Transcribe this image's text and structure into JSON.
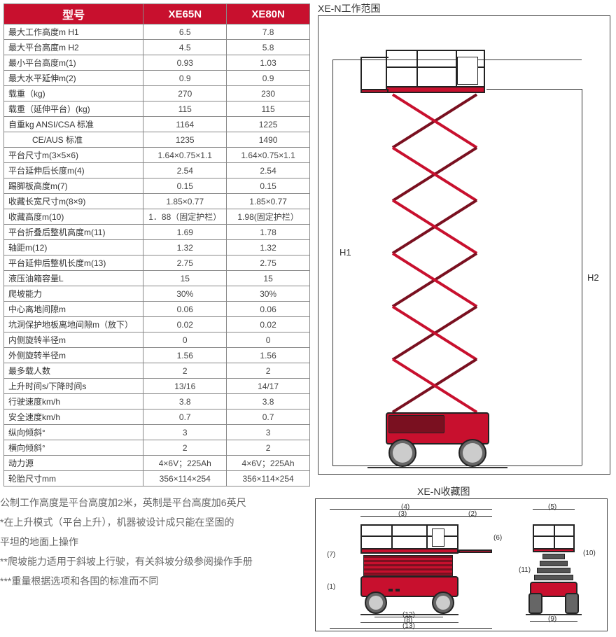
{
  "header": {
    "col0": "型号",
    "col1": "XE65N",
    "col2": "XE80N"
  },
  "rows": [
    {
      "label": "最大工作高度m H1",
      "v1": "6.5",
      "v2": "7.8"
    },
    {
      "label": "最大平台高度m H2",
      "v1": "4.5",
      "v2": "5.8"
    },
    {
      "label": "最小平台高度m(1)",
      "v1": "0.93",
      "v2": "1.03"
    },
    {
      "label": "最大水平延伸m(2)",
      "v1": "0.9",
      "v2": "0.9"
    },
    {
      "label": "载重（kg)",
      "v1": "270",
      "v2": "230"
    },
    {
      "label": "载重（延伸平台）(kg)",
      "v1": "115",
      "v2": "115"
    },
    {
      "label": "自重kg ANSI/CSA 标准",
      "v1": "1164",
      "v2": "1225"
    },
    {
      "label": "CE/AUS 标准",
      "indent": true,
      "v1": "1235",
      "v2": "1490"
    },
    {
      "label": "平台尺寸m(3×5×6)",
      "v1": "1.64×0.75×1.1",
      "v2": "1.64×0.75×1.1"
    },
    {
      "label": "平台延伸后长度m(4)",
      "v1": "2.54",
      "v2": "2.54"
    },
    {
      "label": "踢脚板高度m(7)",
      "v1": "0.15",
      "v2": "0.15"
    },
    {
      "label": "收藏长宽尺寸m(8×9)",
      "v1": "1.85×0.77",
      "v2": "1.85×0.77"
    },
    {
      "label": "收藏高度m(10)",
      "v1": "1．88（固定护栏）",
      "v2": "1.98(固定护栏）"
    },
    {
      "label": "平台折叠后整机高度m(11)",
      "v1": "1.69",
      "v2": "1.78"
    },
    {
      "label": "轴距m(12)",
      "v1": "1.32",
      "v2": "1.32"
    },
    {
      "label": "平台延伸后整机长度m(13)",
      "v1": "2.75",
      "v2": "2.75"
    },
    {
      "label": "液压油箱容量L",
      "v1": "15",
      "v2": "15"
    },
    {
      "label": "爬坡能力",
      "v1": "30%",
      "v2": "30%"
    },
    {
      "label": "中心离地间隙m",
      "v1": "0.06",
      "v2": "0.06"
    },
    {
      "label": "坑洞保护地板离地间隙m（放下）",
      "v1": "0.02",
      "v2": "0.02"
    },
    {
      "label": "内侧旋转半径m",
      "v1": "0",
      "v2": "0"
    },
    {
      "label": "外侧旋转半径m",
      "v1": "1.56",
      "v2": "1.56"
    },
    {
      "label": "最多载人数",
      "v1": "2",
      "v2": "2"
    },
    {
      "label": "上升时间s/下降时间s",
      "v1": "13/16",
      "v2": "14/17"
    },
    {
      "label": "行驶速度km/h",
      "v1": "3.8",
      "v2": "3.8"
    },
    {
      "label": "安全速度km/h",
      "v1": "0.7",
      "v2": "0.7"
    },
    {
      "label": "纵向倾斜°",
      "v1": "3",
      "v2": "3"
    },
    {
      "label": "横向倾斜°",
      "v1": "2",
      "v2": "2"
    },
    {
      "label": "动力源",
      "v1": "4×6V；225Ah",
      "v2": "4×6V；225Ah"
    },
    {
      "label": "轮胎尺寸mm",
      "v1": "356×114×254",
      "v2": "356×114×254"
    }
  ],
  "diagrams": {
    "working_title": "XE-N工作范围",
    "stowed_title": "XE-N收藏图",
    "labels": {
      "h1": "H1",
      "h2": "H2"
    },
    "dim_nums": [
      "(1)",
      "(2)",
      "(3)",
      "(4)",
      "(5)",
      "(6)",
      "(7)",
      "(8)",
      "(9)",
      "(10)",
      "(11)",
      "(12)",
      "(13)"
    ]
  },
  "notes": {
    "n1": "公制工作高度是平台高度加2米，英制是平台高度加6英尺",
    "n2": "*在上升模式（平台上升），机器被设计成只能在坚固的",
    "n3": "平坦的地面上操作",
    "n4": "**爬坡能力适用于斜坡上行驶，有关斜坡分级参阅操作手册",
    "n5": "***重量根据选项和各国的标准而不同"
  },
  "colors": {
    "brand_red": "#c8102e",
    "brand_dark": "#7a1020",
    "border": "#444444",
    "grid": "#888888",
    "text": "#333333",
    "muted": "#666666",
    "wheel": "#666666"
  }
}
